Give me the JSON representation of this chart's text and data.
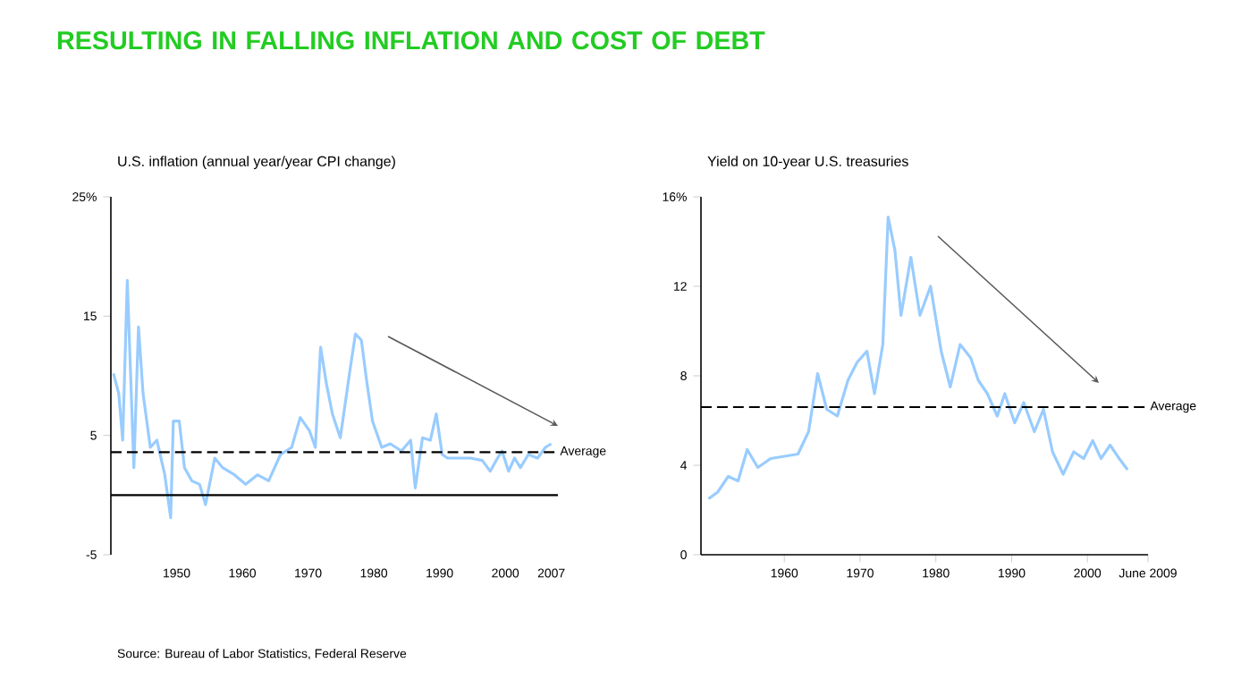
{
  "chart_data": [
    {
      "type": "line",
      "title": "RESULTING IN FALLING INFLATION AND COST OF DEBT",
      "subtitle": "U.S. inflation (annual year/year CPI change)",
      "x": [
        1940.4,
        1941.2,
        1941.8,
        1942.5,
        1943.5,
        1944.2,
        1944.9,
        1946.0,
        1947.0,
        1948.2,
        1949.1,
        1949.5,
        1950.4,
        1951.2,
        1952.3,
        1953.5,
        1954.4,
        1955.8,
        1957.0,
        1958.8,
        1960.5,
        1962.3,
        1964.0,
        1965.8,
        1967.5,
        1968.8,
        1970.2,
        1971.1,
        1971.9,
        1972.8,
        1973.7,
        1974.9,
        1976.3,
        1977.2,
        1978.1,
        1978.9,
        1979.8,
        1981.2,
        1982.5,
        1984.2,
        1985.6,
        1986.3,
        1987.4,
        1988.6,
        1989.5,
        1990.4,
        1991.2,
        1993.0,
        1994.7,
        1996.5,
        1997.7,
        1998.6,
        1999.5,
        2000.5,
        2001.4,
        2002.3,
        2003.5,
        2004.9,
        2006.1,
        2007.0
      ],
      "series": [
        {
          "color": "#99ccff",
          "values": [
            10.2,
            8.5,
            4.6,
            18.0,
            2.3,
            14.1,
            8.5,
            4.0,
            4.6,
            1.7,
            -1.9,
            6.2,
            6.2,
            2.3,
            1.2,
            0.9,
            -0.8,
            3.1,
            2.3,
            1.7,
            0.9,
            1.7,
            1.2,
            3.4,
            4.0,
            6.5,
            5.4,
            4.0,
            12.4,
            9.3,
            6.8,
            4.8,
            10.2,
            13.5,
            13.0,
            9.6,
            6.2,
            4.0,
            4.3,
            3.7,
            4.6,
            0.6,
            4.8,
            4.6,
            6.8,
            3.4,
            3.1,
            3.1,
            3.1,
            2.9,
            2.0,
            2.9,
            3.7,
            2.0,
            3.1,
            2.3,
            3.4,
            3.1,
            4.0,
            4.3
          ]
        }
      ],
      "xlim": [
        1940,
        2008
      ],
      "xticks": [
        1950,
        1960,
        1970,
        1980,
        1990,
        2000,
        2007
      ],
      "ylim": [
        -5,
        25
      ],
      "yticks": [
        {
          "value": 25,
          "label": "25%"
        },
        15,
        5,
        -5
      ],
      "ref_lines": [
        {
          "axis": "y",
          "value": 0,
          "line_style": "solid"
        },
        {
          "axis": "y",
          "value": 3.6,
          "label": "Average",
          "line_style": "dashed"
        }
      ],
      "annotations": [
        "Source: Bureau of Labor Statistics, Federal Reserve"
      ]
    },
    {
      "type": "line",
      "title": "Yield on 10-year U.S. treasuries",
      "x": [
        1950.0,
        1951.2,
        1952.6,
        1953.9,
        1955.1,
        1956.5,
        1958.2,
        1960.0,
        1961.8,
        1963.2,
        1964.4,
        1965.6,
        1967.0,
        1968.4,
        1969.6,
        1970.9,
        1971.9,
        1973.0,
        1973.7,
        1974.6,
        1975.4,
        1976.7,
        1977.9,
        1979.3,
        1980.7,
        1981.9,
        1983.2,
        1984.6,
        1985.6,
        1986.8,
        1988.1,
        1989.1,
        1990.4,
        1991.6,
        1993.0,
        1994.2,
        1995.4,
        1996.8,
        1998.2,
        1999.5,
        2000.7,
        2001.8,
        2003.0,
        2004.2,
        2005.3
      ],
      "series": [
        {
          "color": "#99ccff",
          "values": [
            2.5,
            2.8,
            3.5,
            3.3,
            4.7,
            3.9,
            4.3,
            4.4,
            4.5,
            5.5,
            8.1,
            6.5,
            6.2,
            7.8,
            8.6,
            9.1,
            7.2,
            9.4,
            15.1,
            13.6,
            10.7,
            13.3,
            10.7,
            12.0,
            9.1,
            7.5,
            9.4,
            8.8,
            7.8,
            7.2,
            6.2,
            7.2,
            5.9,
            6.8,
            5.5,
            6.5,
            4.6,
            3.6,
            4.6,
            4.3,
            5.1,
            4.3,
            4.9,
            4.3,
            3.8
          ]
        }
      ],
      "xlim": [
        1949,
        2008
      ],
      "xticks": [
        1960,
        1970,
        1980,
        1990,
        2000,
        {
          "value": 2008,
          "label": "June 2009"
        }
      ],
      "ylim": [
        0,
        16
      ],
      "yticks": [
        {
          "value": 16,
          "label": "16%"
        },
        12,
        8,
        4,
        0
      ],
      "ref_lines": [
        {
          "axis": "y",
          "value": 6.6,
          "label": "Average",
          "line_style": "dashed"
        }
      ]
    }
  ]
}
